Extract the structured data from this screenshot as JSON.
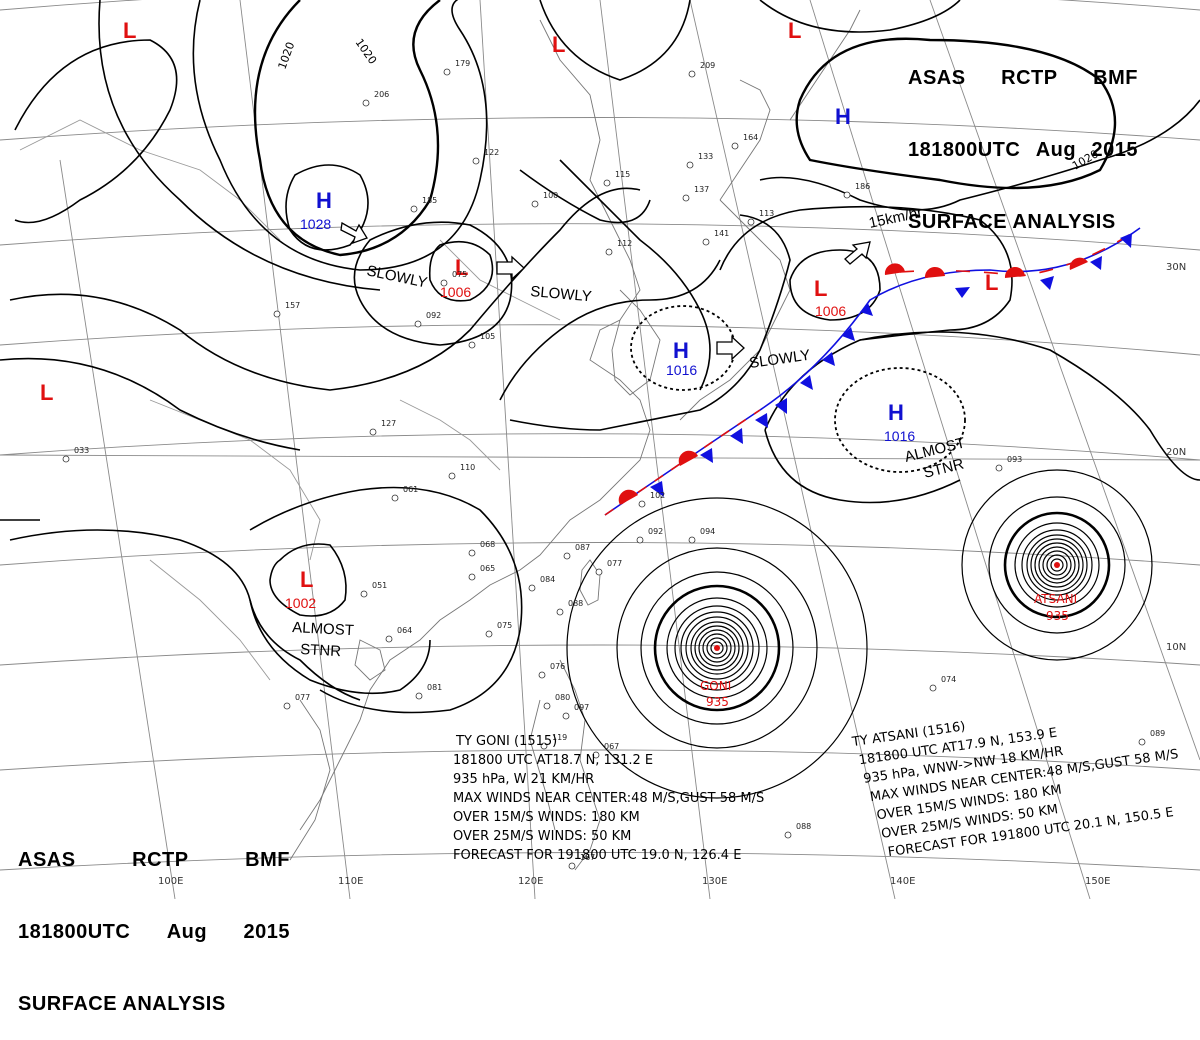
{
  "header_top": {
    "line1": [
      "ASAS",
      "RCTP",
      "BMF"
    ],
    "line2": [
      "181800UTC",
      "Aug",
      "2015"
    ],
    "line3": "SURFACE ANALYSIS"
  },
  "header_bottom": {
    "line1": [
      "ASAS",
      "RCTP",
      "BMF"
    ],
    "line2": [
      "181800UTC",
      "Aug",
      "2015"
    ],
    "line3": "SURFACE ANALYSIS"
  },
  "colors": {
    "high": "#1010d0",
    "low": "#e01010",
    "cold_front": "#1010e0",
    "warm_front": "#e01010",
    "isobar": "#000000",
    "grid": "#888888",
    "coast": "#777777"
  },
  "pressure_systems": [
    {
      "type": "H",
      "value": "1028"
    },
    {
      "type": "L",
      "value": "1006"
    },
    {
      "type": "H",
      "value": "1016"
    },
    {
      "type": "L",
      "value": "1006"
    },
    {
      "type": "H",
      "value": "1016"
    },
    {
      "type": "L",
      "value": "1002"
    },
    {
      "type": "H",
      "value": ""
    },
    {
      "type": "L",
      "value": ""
    },
    {
      "type": "L",
      "value": ""
    },
    {
      "type": "L",
      "value": ""
    },
    {
      "type": "L",
      "value": ""
    },
    {
      "type": "L",
      "value": ""
    }
  ],
  "motion_labels": [
    "SLOWLY",
    "SLOWLY",
    "SLOWLY",
    "15km/hr",
    "ALMOST",
    "STNR",
    "ALMOST",
    "STNR"
  ],
  "isobar_labels": [
    "1020",
    "1020",
    "1020"
  ],
  "typhoons": [
    {
      "name": "GONI",
      "pressure": "935"
    },
    {
      "name": "ATSANI",
      "pressure": "935"
    }
  ],
  "lat_labels": [
    "30N",
    "20N",
    "10N"
  ],
  "lon_labels": [
    "100E",
    "110E",
    "120E",
    "130E",
    "140E",
    "150E"
  ],
  "goni_info": [
    "TY  GONI  (1515)",
    "181800 UTC  AT18.7 N, 131.2 E",
    "935 hPa, W  21 KM/HR",
    "MAX WINDS NEAR CENTER:48 M/S,GUST 58 M/S",
    "OVER 15M/S WINDS: 180 KM",
    "OVER 25M/S WINDS: 50 KM",
    "FORECAST FOR 191800 UTC 19.0 N, 126.4 E"
  ],
  "atsani_info": [
    "TY  ATSANI  (1516)",
    "181800 UTC  AT17.9 N, 153.9 E",
    "935 hPa, WNW->NW  18 KM/HR",
    "MAX WINDS NEAR CENTER:48 M/S,GUST 58 M/S",
    "OVER 15M/S WINDS: 180 KM",
    "OVER 25M/S WINDS: 50 KM",
    "FORECAST FOR 191800 UTC 20.1 N, 150.5 E"
  ],
  "station_numbers": [
    "179",
    "206",
    "122",
    "115",
    "133",
    "137",
    "100",
    "112",
    "185",
    "075",
    "157",
    "092",
    "105",
    "127",
    "110",
    "061",
    "068",
    "065",
    "087",
    "051",
    "064",
    "075",
    "077",
    "081",
    "102",
    "092",
    "094",
    "077",
    "088",
    "084",
    "093",
    "074",
    "089",
    "088",
    "167",
    "186",
    "113",
    "141",
    "164",
    "209",
    "033",
    "076",
    "080",
    "119",
    "097",
    "067"
  ]
}
